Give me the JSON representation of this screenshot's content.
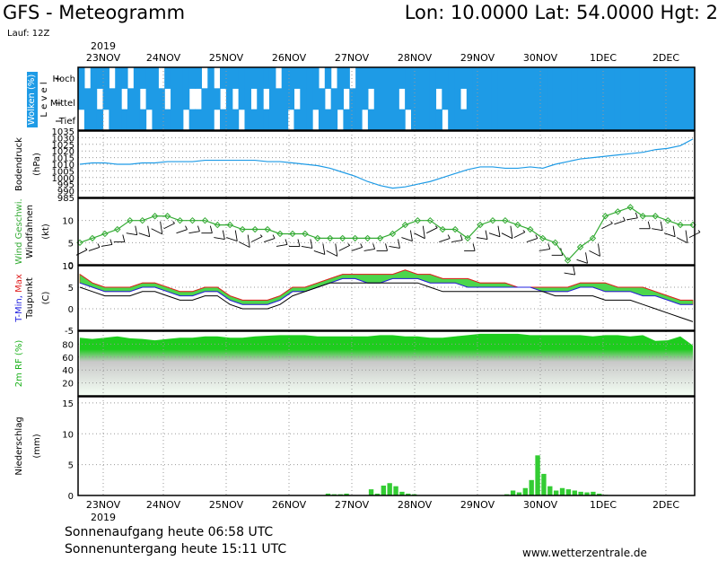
{
  "header": {
    "title": "GFS - Meteogramm",
    "coords": "Lon: 10.0000 Lat: 54.0000 Hgt: 2",
    "run": "Lauf: 12Z"
  },
  "footer": {
    "sunrise": "Sonnenaufgang heute 06:58 UTC",
    "sunset": "Sonnenuntergang heute 15:11 UTC",
    "site": "www.wetterzentrale.de"
  },
  "colors": {
    "cloud": "#1e9be6",
    "pressure": "#1e9be6",
    "wind": "#33aa33",
    "tmax": "#e02020",
    "tmin": "#2020e0",
    "humidity": "#22cc22",
    "precip": "#33cc33"
  },
  "chart_data": [
    {
      "panel": "clouds",
      "type": "heatmap",
      "ylabel": "Wolken (%)",
      "sublabel": "Level",
      "levels": [
        "Hoch",
        "Mittel",
        "Tief"
      ],
      "x": [
        "23NOV",
        "24NOV",
        "25NOV",
        "26NOV",
        "27NOV",
        "28NOV",
        "29NOV",
        "30NOV",
        "1DEC",
        "2DEC"
      ],
      "year": "2019",
      "layers": [
        [
          1,
          0,
          1,
          1,
          1,
          0,
          1,
          1,
          0,
          1,
          1,
          1,
          1,
          0,
          1,
          1,
          1,
          1,
          1,
          1,
          0,
          1,
          0,
          1,
          1,
          1,
          1,
          1,
          1,
          1,
          1,
          1,
          0,
          1,
          1,
          1,
          1,
          1,
          1,
          0,
          1,
          0,
          1,
          1,
          0,
          1,
          1,
          1,
          1,
          1,
          1,
          1,
          1,
          1,
          1,
          1,
          1,
          1,
          1,
          1,
          1,
          1,
          1,
          1,
          1,
          1,
          1,
          1,
          1,
          1,
          1,
          1,
          1,
          1,
          1,
          1,
          1,
          1,
          1,
          1,
          1,
          1,
          1,
          1,
          1,
          1,
          1,
          1,
          1,
          1,
          1,
          1,
          1,
          1,
          1,
          1,
          1,
          1,
          1,
          1
        ],
        [
          1,
          1,
          1,
          0,
          1,
          1,
          1,
          0,
          1,
          1,
          0,
          1,
          1,
          1,
          0,
          1,
          1,
          1,
          0,
          0,
          1,
          1,
          1,
          0,
          1,
          0,
          1,
          1,
          0,
          1,
          0,
          1,
          1,
          1,
          1,
          0,
          1,
          1,
          1,
          1,
          0,
          1,
          1,
          0,
          1,
          1,
          1,
          0,
          1,
          1,
          1,
          1,
          0,
          1,
          1,
          1,
          1,
          1,
          0,
          1,
          1,
          1,
          0,
          1,
          1,
          1,
          1,
          1,
          1,
          1,
          1,
          1,
          1,
          1,
          1,
          1,
          1,
          1,
          1,
          1,
          1,
          1,
          1,
          1,
          1,
          1,
          1,
          1,
          1,
          1,
          1,
          1,
          1,
          1,
          1,
          1,
          1,
          1,
          1,
          1
        ],
        [
          0,
          1,
          1,
          1,
          0,
          1,
          1,
          1,
          1,
          1,
          1,
          0,
          1,
          1,
          1,
          1,
          1,
          0,
          1,
          1,
          1,
          1,
          0,
          1,
          1,
          1,
          0,
          1,
          1,
          1,
          1,
          1,
          1,
          1,
          0,
          1,
          1,
          1,
          0,
          1,
          1,
          1,
          0,
          1,
          1,
          1,
          0,
          1,
          1,
          1,
          1,
          1,
          1,
          0,
          1,
          1,
          1,
          1,
          1,
          0,
          1,
          1,
          1,
          1,
          1,
          1,
          1,
          1,
          1,
          1,
          1,
          1,
          1,
          1,
          1,
          1,
          1,
          1,
          1,
          1,
          1,
          1,
          1,
          1,
          1,
          1,
          1,
          1,
          1,
          1,
          1,
          1,
          1,
          1,
          1,
          1,
          1,
          1,
          1,
          1
        ]
      ]
    },
    {
      "panel": "pressure",
      "type": "line",
      "ylabel": "Bodendruck",
      "unit": "(hPa)",
      "ylim": [
        985,
        1035
      ],
      "yticks": [
        985,
        990,
        995,
        1000,
        1005,
        1010,
        1015,
        1020,
        1025,
        1030,
        1035
      ],
      "values": [
        1010,
        1011,
        1011,
        1010,
        1010,
        1011,
        1011,
        1012,
        1012,
        1012,
        1013,
        1013,
        1013,
        1013,
        1013,
        1012,
        1012,
        1011,
        1010,
        1009,
        1007,
        1004,
        1001,
        997,
        994,
        992,
        993,
        995,
        997,
        1000,
        1003,
        1006,
        1008,
        1008,
        1007,
        1007,
        1008,
        1007,
        1010,
        1012,
        1014,
        1015,
        1016,
        1017,
        1018,
        1019,
        1021,
        1022,
        1024,
        1029
      ]
    },
    {
      "panel": "wind",
      "type": "line",
      "ylabel": "Wind Geschwi.",
      "ylabel2": "Windfahnen",
      "unit": "(kt)",
      "ylim": [
        0,
        15
      ],
      "yticks": [
        0,
        5,
        10
      ],
      "values": [
        5,
        6,
        7,
        8,
        10,
        10,
        11,
        11,
        10,
        10,
        10,
        9,
        9,
        8,
        8,
        8,
        7,
        7,
        7,
        6,
        6,
        6,
        6,
        6,
        6,
        7,
        9,
        10,
        10,
        8,
        8,
        6,
        9,
        10,
        10,
        9,
        8,
        6,
        5,
        1,
        4,
        6,
        11,
        12,
        13,
        11,
        11,
        10,
        9,
        9
      ]
    },
    {
      "panel": "temperature",
      "type": "area",
      "ylabel": "T-Min, Max",
      "ylabel2": "Taupunkt",
      "unit": "(C)",
      "ylim": [
        -5,
        10
      ],
      "yticks": [
        -5,
        0,
        5,
        10
      ],
      "tmax": [
        8,
        6,
        5,
        5,
        5,
        6,
        6,
        5,
        4,
        4,
        5,
        5,
        3,
        2,
        2,
        2,
        3,
        5,
        5,
        6,
        7,
        8,
        8,
        8,
        8,
        8,
        9,
        8,
        8,
        7,
        7,
        7,
        6,
        6,
        6,
        5,
        5,
        5,
        5,
        5,
        6,
        6,
        6,
        5,
        5,
        5,
        4,
        3,
        2,
        2
      ],
      "tmin": [
        6,
        5,
        4,
        4,
        4,
        5,
        5,
        4,
        3,
        3,
        4,
        4,
        2,
        1,
        1,
        1,
        2,
        4,
        4,
        5,
        6,
        7,
        7,
        6,
        6,
        7,
        7,
        7,
        6,
        6,
        6,
        5,
        5,
        5,
        5,
        5,
        5,
        4,
        4,
        4,
        5,
        5,
        4,
        4,
        4,
        3,
        3,
        2,
        1,
        1
      ],
      "dewpoint": [
        5,
        4,
        3,
        3,
        3,
        4,
        4,
        3,
        2,
        2,
        3,
        3,
        1,
        0,
        0,
        0,
        1,
        3,
        4,
        5,
        6,
        6,
        6,
        6,
        6,
        6,
        6,
        6,
        5,
        4,
        4,
        4,
        4,
        4,
        4,
        4,
        4,
        4,
        3,
        3,
        3,
        3,
        2,
        2,
        2,
        1,
        0,
        -1,
        -2,
        -3
      ]
    },
    {
      "panel": "humidity",
      "type": "area",
      "ylabel": "2m RF",
      "unit": "(%)",
      "ylim": [
        0,
        100
      ],
      "yticks": [
        20,
        40,
        60,
        80
      ],
      "values": [
        90,
        88,
        90,
        92,
        89,
        88,
        86,
        88,
        90,
        90,
        92,
        92,
        90,
        90,
        92,
        93,
        94,
        94,
        94,
        92,
        92,
        92,
        92,
        92,
        94,
        94,
        92,
        92,
        90,
        90,
        92,
        94,
        96,
        96,
        96,
        96,
        94,
        94,
        94,
        94,
        94,
        92,
        94,
        94,
        92,
        94,
        85,
        86,
        92,
        78
      ]
    },
    {
      "panel": "precipitation",
      "type": "bar",
      "ylabel": "Niederschlag",
      "unit": "(mm)",
      "ylim": [
        0,
        16
      ],
      "yticks": [
        0,
        5,
        10,
        15
      ],
      "values": [
        0,
        0,
        0,
        0,
        0,
        0,
        0,
        0,
        0,
        0,
        0,
        0,
        0,
        0,
        0,
        0,
        0,
        0,
        0,
        0,
        0,
        0,
        0,
        0,
        0,
        0,
        0,
        0,
        0,
        0,
        0,
        0,
        0,
        0,
        0,
        0,
        0,
        0,
        0,
        0,
        0.3,
        0.2,
        0.2,
        0.3,
        0,
        0,
        0,
        1.0,
        0.3,
        1.6,
        2.0,
        1.5,
        0.6,
        0.3,
        0.2,
        0,
        0,
        0,
        0,
        0,
        0,
        0,
        0,
        0,
        0,
        0,
        0,
        0,
        0,
        0.2,
        0.8,
        0.5,
        1.2,
        2.5,
        6.5,
        3.5,
        1.5,
        0.8,
        1.2,
        1.0,
        0.8,
        0.6,
        0.5,
        0.6,
        0.3,
        0.1,
        0,
        0,
        0,
        0,
        0,
        0,
        0,
        0,
        0,
        0,
        0,
        0,
        0,
        0
      ]
    }
  ]
}
